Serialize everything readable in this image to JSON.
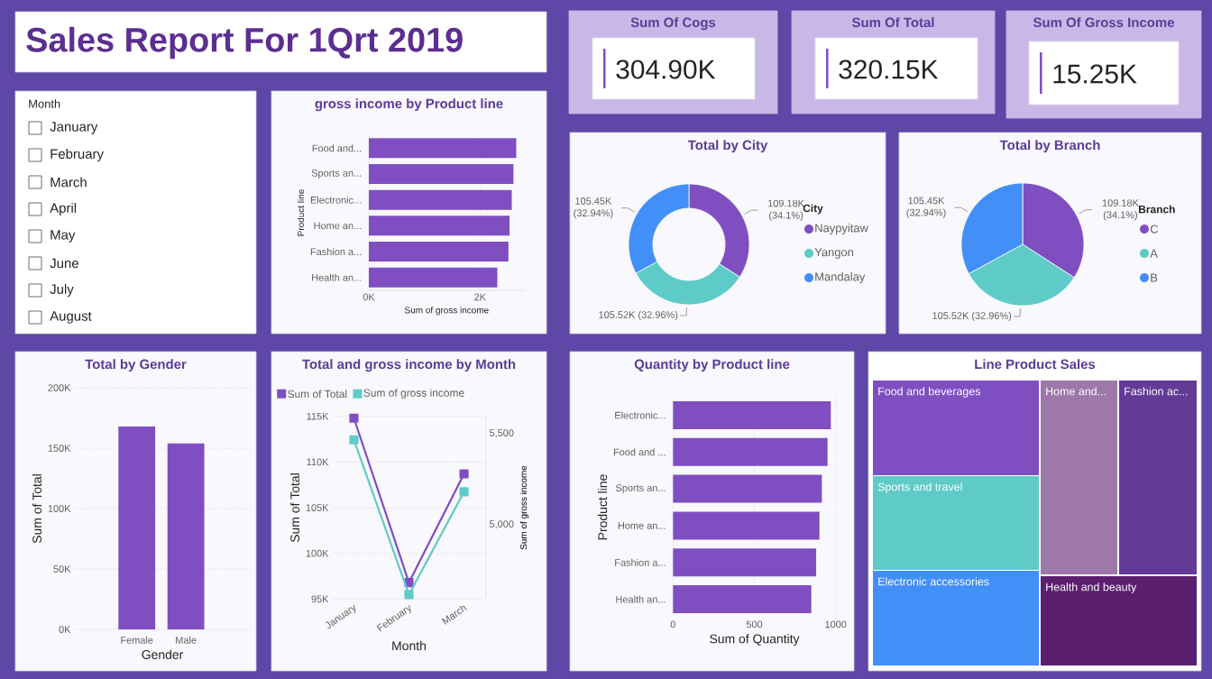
{
  "chart_data": [
    {
      "type": "other",
      "title": "Sales Report For 1Qrt 2019"
    },
    {
      "type": "other",
      "title": "Sum Of Cogs",
      "annotations": [
        "304.90K"
      ]
    },
    {
      "type": "other",
      "title": "Sum Of Total",
      "annotations": [
        "320.15K"
      ]
    },
    {
      "type": "other",
      "title": "Sum Of Gross Income",
      "annotations": [
        "15.25K"
      ]
    },
    {
      "type": "other",
      "title": "Month",
      "categories": [
        "January",
        "February",
        "March",
        "April",
        "May",
        "June",
        "July",
        "August"
      ]
    },
    {
      "type": "bar",
      "orientation": "horizontal",
      "title": "gross income by Product line",
      "xlabel": "Sum of gross income",
      "ylabel": "Product line",
      "categories": [
        "Food and...",
        "Sports an...",
        "Electronic...",
        "Home an...",
        "Fashion a...",
        "Health an..."
      ],
      "values": [
        2650,
        2600,
        2570,
        2530,
        2510,
        2310
      ],
      "color": "#7f4fc1",
      "xlim": [
        0,
        2800
      ],
      "xticks": [
        {
          "value": 0,
          "label": "0K"
        },
        {
          "value": 2000,
          "label": "2K"
        }
      ],
      "grid": "x"
    },
    {
      "type": "donut",
      "title": "Total by City",
      "legend_title": "City",
      "legend": "right",
      "categories": [
        "Naypyitaw",
        "Yangon",
        "Mandalay"
      ],
      "values": [
        109180,
        105520,
        105450
      ],
      "value_labels": [
        "109.18K (34.1%)",
        "105.52K (32.96%)",
        "105.45K (32.94%)"
      ],
      "colors": [
        "#7f4fc1",
        "#5ecbc8",
        "#428ff8"
      ]
    },
    {
      "type": "pie",
      "title": "Total by Branch",
      "legend_title": "Branch",
      "legend": "right",
      "categories": [
        "C",
        "A",
        "B"
      ],
      "values": [
        109180,
        105520,
        105450
      ],
      "value_labels": [
        "109.18K (34.1%)",
        "105.52K (32.96%)",
        "105.45K (32.94%)"
      ],
      "colors": [
        "#7f4fc1",
        "#5ecbc8",
        "#428ff8"
      ]
    },
    {
      "type": "bar",
      "title": "Total by Gender",
      "xlabel": "Gender",
      "ylabel": "Sum of Total",
      "categories": [
        "Female",
        "Male"
      ],
      "values": [
        168000,
        154000
      ],
      "color": "#7f4fc1",
      "ylim": [
        0,
        200000
      ],
      "yticks": [
        {
          "value": 0,
          "label": "0K"
        },
        {
          "value": 50000,
          "label": "50K"
        },
        {
          "value": 100000,
          "label": "100K"
        },
        {
          "value": 150000,
          "label": "150K"
        },
        {
          "value": 200000,
          "label": "200K"
        }
      ],
      "grid": "y"
    },
    {
      "type": "line",
      "title": "Total and gross income by Month",
      "xlabel": "Month",
      "ylabel": "Sum of Total",
      "y2label": "Sum of gross income",
      "categories": [
        "January",
        "February",
        "March"
      ],
      "series": [
        {
          "name": "Sum of Total",
          "color": "#7f4fc1",
          "values": [
            114800,
            96800,
            108700
          ]
        },
        {
          "name": "Sum of gross income",
          "color": "#5ecbc8",
          "values": [
            5465,
            4615,
            5180
          ],
          "axis": "y2"
        }
      ],
      "ylim": [
        95000,
        115000
      ],
      "yticks": [
        {
          "value": 95000,
          "label": "95K"
        },
        {
          "value": 100000,
          "label": "100K"
        },
        {
          "value": 105000,
          "label": "105K"
        },
        {
          "value": 110000,
          "label": "110K"
        },
        {
          "value": 115000,
          "label": "115K"
        }
      ],
      "y2lim": [
        4591,
        5594
      ],
      "y2ticks": [
        {
          "value": 5000,
          "label": "5,000"
        },
        {
          "value": 5500,
          "label": "5,500"
        }
      ],
      "grid": "y",
      "legend": "top left",
      "marker": "square",
      "line_style": "solid"
    },
    {
      "type": "bar",
      "orientation": "horizontal",
      "title": "Quantity by Product line",
      "xlabel": "Sum of Quantity",
      "ylabel": "Product line",
      "categories": [
        "Electronic...",
        "Food and ...",
        "Sports an...",
        "Home an...",
        "Fashion a...",
        "Health an..."
      ],
      "values": [
        970,
        950,
        915,
        900,
        880,
        850
      ],
      "color": "#7f4fc1",
      "xlim": [
        0,
        1000
      ],
      "xticks": [
        0,
        500,
        1000
      ],
      "grid": "x"
    },
    {
      "type": "other",
      "title": "Line Product Sales",
      "categories": [
        "Food and beverages",
        "Sports and travel",
        "Electronic accessories",
        "Home and...",
        "Fashion ac...",
        "Health and beauty"
      ],
      "colors": [
        "#7f4fc1",
        "#5ecbc8",
        "#428ff8",
        "#9d78a8",
        "#633b96",
        "#5b1f6f"
      ]
    }
  ]
}
